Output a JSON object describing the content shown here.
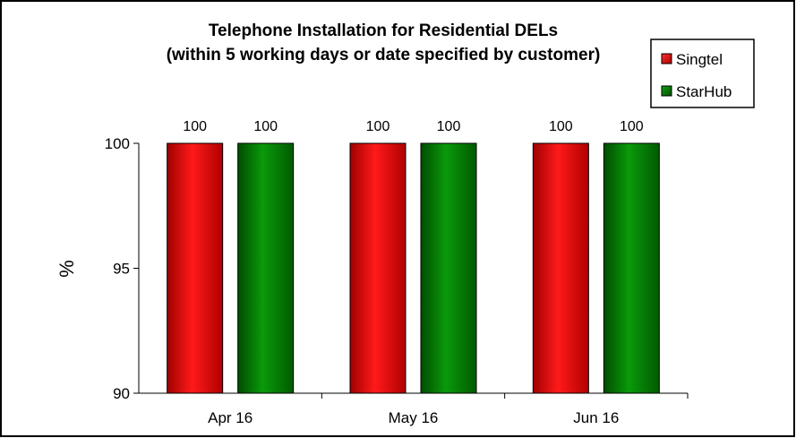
{
  "chart_data": {
    "type": "bar",
    "title": "Telephone Installation for Residential DELs",
    "subtitle": "(within 5 working days or date specified by customer)",
    "xlabel": "",
    "ylabel": "%",
    "ylim": [
      90,
      100
    ],
    "yticks": [
      90,
      95,
      100
    ],
    "categories": [
      "Apr 16",
      "May 16",
      "Jun 16"
    ],
    "series": [
      {
        "name": "Singtel",
        "values": [
          100,
          100,
          100
        ],
        "color": "#ff0000"
      },
      {
        "name": "StarHub",
        "values": [
          100,
          100,
          100
        ],
        "color": "#008000"
      }
    ],
    "data_labels": true,
    "grid": false,
    "legend_position": "top-right"
  }
}
